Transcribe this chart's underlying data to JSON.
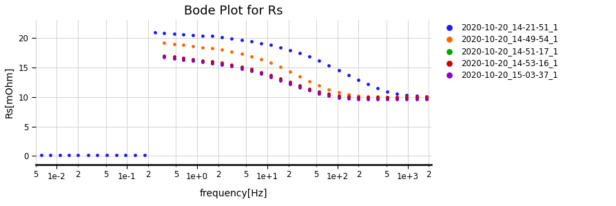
{
  "title": "Bode Plot for Rs",
  "xlabel": "frequency[Hz]",
  "ylabel": "Rs[mOhm]",
  "xlim": [
    0.005,
    2200
  ],
  "ylim": [
    -1.5,
    23
  ],
  "yticks": [
    0,
    5,
    10,
    15,
    20
  ],
  "series": [
    {
      "label": "2020-10-20_14-21-51_1",
      "color": "#1a1aff",
      "frequencies": [
        0.006,
        0.008,
        0.011,
        0.015,
        0.02,
        0.028,
        0.038,
        0.052,
        0.07,
        0.096,
        0.13,
        0.18,
        0.25,
        0.34,
        0.47,
        0.64,
        0.88,
        1.2,
        1.65,
        2.27,
        3.12,
        4.3,
        5.9,
        8.1,
        11.1,
        15.3,
        21.1,
        29.0,
        39.9,
        54.9,
        75.6,
        104,
        143,
        197,
        271,
        373,
        513,
        707,
        973,
        1340,
        1844
      ],
      "rs_values": [
        0.1,
        0.1,
        0.1,
        0.1,
        0.1,
        0.1,
        0.1,
        0.1,
        0.1,
        0.1,
        0.1,
        0.1,
        20.9,
        20.8,
        20.7,
        20.6,
        20.5,
        20.4,
        20.3,
        20.1,
        19.9,
        19.7,
        19.4,
        19.1,
        18.8,
        18.4,
        17.9,
        17.4,
        16.8,
        16.1,
        15.3,
        14.5,
        13.7,
        12.9,
        12.2,
        11.5,
        10.9,
        10.5,
        10.3,
        10.2,
        10.1
      ]
    },
    {
      "label": "2020-10-20_14-49-54_1",
      "color": "#ff6600",
      "frequencies": [
        0.34,
        0.47,
        0.64,
        0.88,
        1.2,
        1.65,
        2.27,
        3.12,
        4.3,
        5.9,
        8.1,
        11.1,
        15.3,
        21.1,
        29.0,
        39.9,
        54.9,
        75.6,
        104,
        143,
        197,
        271,
        373,
        513,
        707,
        973,
        1340,
        1844
      ],
      "rs_values": [
        19.2,
        19.0,
        18.8,
        18.6,
        18.4,
        18.2,
        18.0,
        17.7,
        17.3,
        16.9,
        16.4,
        15.8,
        15.1,
        14.3,
        13.5,
        12.7,
        12.0,
        11.3,
        10.8,
        10.4,
        10.2,
        10.1,
        10.05,
        10.0,
        10.0,
        10.0,
        10.0,
        10.0
      ]
    },
    {
      "label": "2020-10-20_14-51-17_1",
      "color": "#00aa00",
      "frequencies": [
        0.34,
        0.47,
        0.64,
        0.88,
        1.2,
        1.65,
        2.27,
        3.12,
        4.3,
        5.9,
        8.1,
        11.1,
        15.3,
        21.1,
        29.0,
        39.9,
        54.9,
        75.6,
        104,
        143,
        197,
        271,
        373,
        513,
        707,
        973,
        1340,
        1844
      ],
      "rs_values": [
        16.8,
        16.6,
        16.4,
        16.2,
        16.0,
        15.8,
        15.6,
        15.3,
        14.9,
        14.5,
        14.0,
        13.5,
        12.9,
        12.3,
        11.7,
        11.2,
        10.7,
        10.3,
        10.0,
        9.85,
        9.75,
        9.7,
        9.7,
        9.7,
        9.7,
        9.7,
        9.7,
        9.7
      ]
    },
    {
      "label": "2020-10-20_14-53-16_1",
      "color": "#cc0000",
      "frequencies": [
        0.34,
        0.47,
        0.64,
        0.88,
        1.2,
        1.65,
        2.27,
        3.12,
        4.3,
        5.9,
        8.1,
        11.1,
        15.3,
        21.1,
        29.0,
        39.9,
        54.9,
        75.6,
        104,
        143,
        197,
        271,
        373,
        513,
        707,
        973,
        1340,
        1844
      ],
      "rs_values": [
        17.0,
        16.8,
        16.6,
        16.4,
        16.2,
        16.0,
        15.8,
        15.5,
        15.1,
        14.7,
        14.2,
        13.7,
        13.1,
        12.5,
        11.9,
        11.4,
        10.9,
        10.5,
        10.2,
        10.05,
        10.0,
        10.0,
        10.0,
        10.0,
        10.0,
        10.0,
        10.0,
        10.0
      ]
    },
    {
      "label": "2020-10-20_15-03-37_1",
      "color": "#8800cc",
      "frequencies": [
        0.34,
        0.47,
        0.64,
        0.88,
        1.2,
        1.65,
        2.27,
        3.12,
        4.3,
        5.9,
        8.1,
        11.1,
        15.3,
        21.1,
        29.0,
        39.9,
        54.9,
        75.6,
        104,
        143,
        197,
        271,
        373,
        513,
        707,
        973,
        1340,
        1844
      ],
      "rs_values": [
        16.7,
        16.5,
        16.3,
        16.1,
        15.9,
        15.7,
        15.5,
        15.2,
        14.8,
        14.4,
        13.9,
        13.4,
        12.8,
        12.2,
        11.6,
        11.1,
        10.6,
        10.2,
        9.9,
        9.75,
        9.65,
        9.6,
        9.6,
        9.6,
        9.6,
        9.6,
        9.6,
        9.6
      ]
    }
  ],
  "background_color": "#ffffff",
  "grid_color": "#cccccc",
  "title_fontsize": 13,
  "label_fontsize": 10,
  "tick_fontsize": 8.5,
  "marker_size": 3.5
}
